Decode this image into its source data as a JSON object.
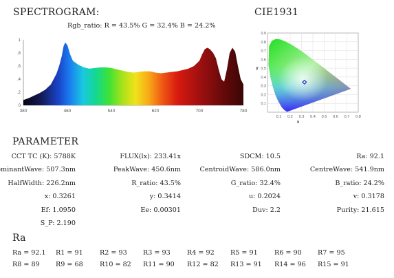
{
  "spectrogram": {
    "title": "SPECTROGRAM:",
    "subtitle": "Rgb_ratio: R = 43.5% G = 32.4% B = 24.2%"
  },
  "cie": {
    "title": "CIE1931",
    "xlabel": "x",
    "ylabel": "y"
  },
  "chart_data": [
    {
      "type": "area",
      "title": "SPECTROGRAM:",
      "subtitle": "Rgb_ratio: R = 43.5% G = 32.4% B = 24.2%",
      "x_ticks": [
        "380",
        "460",
        "540",
        "620",
        "700",
        "780"
      ],
      "y_ticks": [
        "0",
        ".2",
        ".4",
        ".6",
        ".8",
        "1"
      ],
      "xlim": [
        380,
        780
      ],
      "ylim": [
        0,
        1
      ],
      "fill": "wavelength-color-gradient",
      "x": [
        380,
        390,
        400,
        410,
        420,
        430,
        440,
        445,
        450,
        453,
        456,
        460,
        465,
        470,
        480,
        490,
        500,
        510,
        520,
        530,
        540,
        550,
        560,
        570,
        580,
        590,
        600,
        610,
        620,
        630,
        640,
        650,
        660,
        670,
        680,
        690,
        700,
        705,
        710,
        715,
        720,
        725,
        730,
        735,
        740,
        745,
        750,
        755,
        760,
        765,
        770,
        775,
        780
      ],
      "y": [
        0.08,
        0.11,
        0.15,
        0.19,
        0.24,
        0.32,
        0.48,
        0.6,
        0.76,
        0.9,
        0.96,
        0.92,
        0.78,
        0.68,
        0.62,
        0.58,
        0.56,
        0.57,
        0.58,
        0.58,
        0.57,
        0.55,
        0.53,
        0.51,
        0.5,
        0.51,
        0.52,
        0.52,
        0.5,
        0.49,
        0.5,
        0.51,
        0.52,
        0.54,
        0.56,
        0.6,
        0.68,
        0.78,
        0.86,
        0.88,
        0.85,
        0.8,
        0.72,
        0.55,
        0.4,
        0.36,
        0.55,
        0.8,
        0.88,
        0.82,
        0.6,
        0.4,
        0.32
      ]
    },
    {
      "type": "scatter",
      "title": "CIE1931",
      "xlabel": "x",
      "ylabel": "y",
      "x_ticks": [
        "0.1",
        "0.2",
        "0.3",
        "0.4",
        "0.5",
        "0.6",
        "0.7",
        "0.8"
      ],
      "y_ticks": [
        "0.1",
        "0.2",
        "0.3",
        "0.4",
        "0.5",
        "0.6",
        "0.7",
        "0.8",
        "0.9"
      ],
      "xlim": [
        0,
        0.8
      ],
      "ylim": [
        0,
        0.9
      ],
      "grid": true,
      "point": {
        "x": 0.3261,
        "y": 0.3414
      },
      "locus": [
        [
          0.1741,
          0.005
        ],
        [
          0.1666,
          0.0089
        ],
        [
          0.144,
          0.0297
        ],
        [
          0.1241,
          0.0578
        ],
        [
          0.0913,
          0.1327
        ],
        [
          0.0687,
          0.2007
        ],
        [
          0.0454,
          0.295
        ],
        [
          0.0235,
          0.4127
        ],
        [
          0.0082,
          0.5384
        ],
        [
          0.0139,
          0.7502
        ],
        [
          0.0389,
          0.812
        ],
        [
          0.0743,
          0.8338
        ],
        [
          0.1142,
          0.8262
        ],
        [
          0.1547,
          0.8059
        ],
        [
          0.1929,
          0.7816
        ],
        [
          0.2296,
          0.7543
        ],
        [
          0.2658,
          0.7243
        ],
        [
          0.3016,
          0.6923
        ],
        [
          0.3373,
          0.6589
        ],
        [
          0.3731,
          0.6245
        ],
        [
          0.4087,
          0.5896
        ],
        [
          0.4441,
          0.5547
        ],
        [
          0.4788,
          0.5202
        ],
        [
          0.5125,
          0.4866
        ],
        [
          0.5448,
          0.4544
        ],
        [
          0.5752,
          0.4242
        ],
        [
          0.6029,
          0.3965
        ],
        [
          0.627,
          0.3725
        ],
        [
          0.6482,
          0.3514
        ],
        [
          0.6658,
          0.334
        ],
        [
          0.6801,
          0.3197
        ],
        [
          0.6915,
          0.3083
        ],
        [
          0.7006,
          0.2993
        ],
        [
          0.7079,
          0.292
        ],
        [
          0.714,
          0.2859
        ],
        [
          0.7347,
          0.2653
        ]
      ]
    }
  ],
  "parameter": {
    "title": "PARAMETER",
    "rows": [
      [
        "CCT TC (K): 5788K",
        "FLUX(lx): 233.41x",
        "SDCM: 10.5",
        "Ra: 92.1"
      ],
      [
        "DominantWave: 507.3nm",
        "PeakWave: 450.6nm",
        "CentroidWave: 586.0nm",
        "CentreWave: 541.9nm"
      ],
      [
        "HalfWidth: 226.2nm",
        "R_ratio: 43.5%",
        "G_ratio: 32.4%",
        "B_ratio: 24.2%"
      ],
      [
        "x: 0.3261",
        "y: 0.3414",
        "u: 0.2024",
        "v: 0.3178"
      ],
      [
        "Ef: 1.0950",
        "Ee: 0.00301",
        "Duv: 2.2",
        "Purity: 21.615"
      ],
      [
        "S_P: 2.190",
        "",
        "",
        ""
      ]
    ]
  },
  "ra_section": {
    "title": "Ra",
    "row1": [
      "Ra = 92.1",
      "R1 = 91",
      "R2 = 93",
      "R3 = 93",
      "R4 = 92",
      "R5 = 91",
      "R6 = 90",
      "R7 = 95"
    ],
    "row2": [
      "R8 = 89",
      "R9 = 68",
      "R10 = 82",
      "R11 = 90",
      "R12 = 82",
      "R13 = 91",
      "R14 = 96",
      "R15 = 91"
    ]
  }
}
